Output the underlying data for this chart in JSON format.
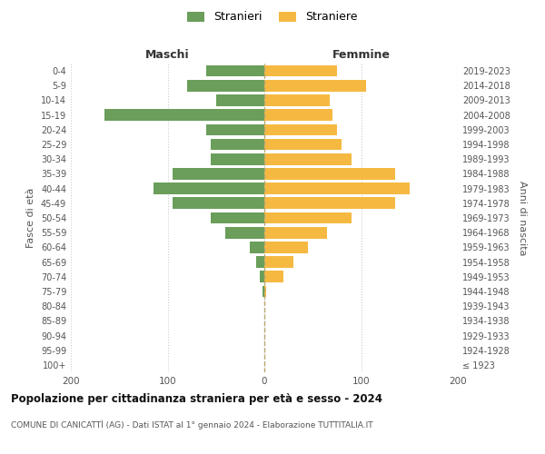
{
  "age_groups": [
    "100+",
    "95-99",
    "90-94",
    "85-89",
    "80-84",
    "75-79",
    "70-74",
    "65-69",
    "60-64",
    "55-59",
    "50-54",
    "45-49",
    "40-44",
    "35-39",
    "30-34",
    "25-29",
    "20-24",
    "15-19",
    "10-14",
    "5-9",
    "0-4"
  ],
  "birth_years": [
    "≤ 1923",
    "1924-1928",
    "1929-1933",
    "1934-1938",
    "1939-1943",
    "1944-1948",
    "1949-1953",
    "1954-1958",
    "1959-1963",
    "1964-1968",
    "1969-1973",
    "1974-1978",
    "1979-1983",
    "1984-1988",
    "1989-1993",
    "1994-1998",
    "1999-2003",
    "2004-2008",
    "2009-2013",
    "2014-2018",
    "2019-2023"
  ],
  "maschi": [
    0,
    0,
    0,
    0,
    0,
    2,
    5,
    8,
    15,
    40,
    55,
    95,
    115,
    95,
    55,
    55,
    60,
    165,
    50,
    80,
    60
  ],
  "femmine": [
    0,
    0,
    0,
    0,
    0,
    2,
    20,
    30,
    45,
    65,
    90,
    135,
    150,
    135,
    90,
    80,
    75,
    70,
    68,
    105,
    75
  ],
  "color_maschi": "#6a9e5a",
  "color_femmine": "#f5b942",
  "color_dashed": "#b8a870",
  "xlim": 200,
  "label_maschi": "Stranieri",
  "label_femmine": "Straniere",
  "title_maschi": "Maschi",
  "title_femmine": "Femmine",
  "ylabel_left": "Fasce di età",
  "ylabel_right": "Anni di nascita",
  "title": "Popolazione per cittadinanza straniera per età e sesso - 2024",
  "subtitle": "COMUNE DI CANICATTÌ (AG) - Dati ISTAT al 1° gennaio 2024 - Elaborazione TUTTITALIA.IT",
  "bg_color": "#ffffff",
  "grid_color": "#cccccc"
}
